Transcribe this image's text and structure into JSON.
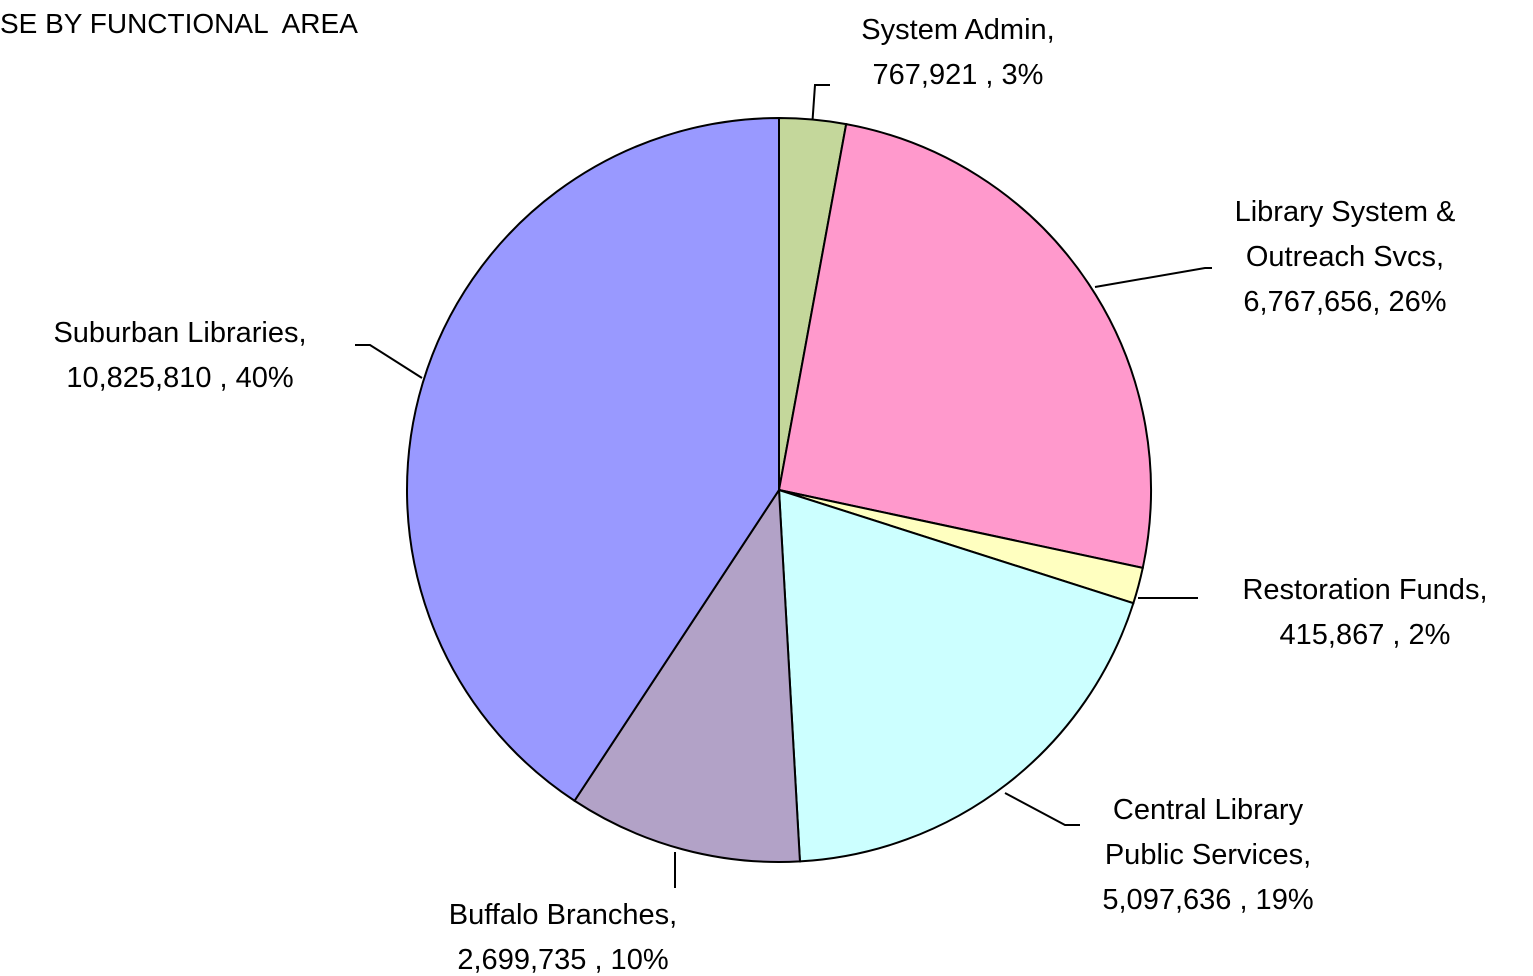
{
  "chart_data": {
    "type": "pie",
    "title": "SE BY FUNCTIONAL  AREA",
    "categories": [
      "System Admin,",
      "Library System & Outreach Svcs,",
      "Restoration Funds,",
      "Central Library Public Services,",
      "Buffalo Branches,",
      "Suburban Libraries,"
    ],
    "values": [
      767921,
      6767656,
      415867,
      5097636,
      2699735,
      10825810
    ],
    "value_labels": [
      "767,921 , 3%",
      "6,767,656, 26%",
      "415,867 , 2%",
      "5,097,636 , 19%",
      "2,699,735 , 10%",
      "10,825,810 , 40%"
    ],
    "colors": [
      "#c4d79b",
      "#ff99cc",
      "#ffffc0",
      "#ccffff",
      "#b2a2c7",
      "#9999ff"
    ]
  }
}
